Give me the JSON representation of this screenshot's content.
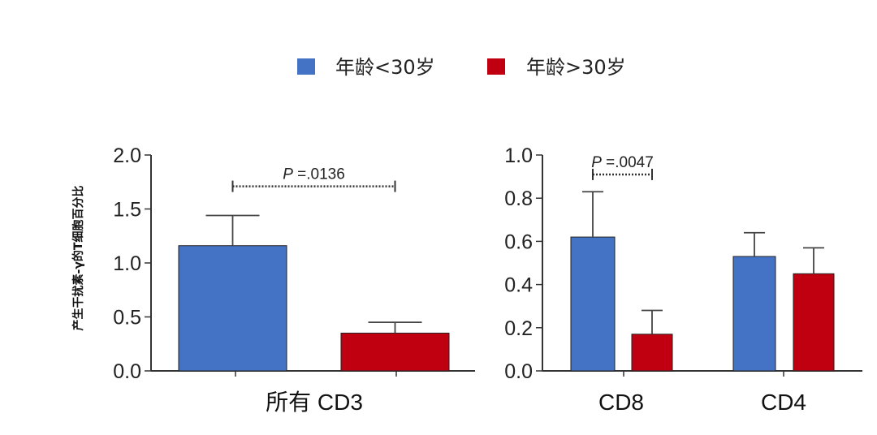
{
  "legend": [
    {
      "label": "年龄<30岁",
      "color": "#4472C4"
    },
    {
      "label": "年龄>30岁",
      "color": "#C00010"
    }
  ],
  "ylabel": "产生干扰素-γ的T细胞百分比",
  "chart_data": [
    {
      "type": "bar",
      "categories": [
        "所有 CD3"
      ],
      "series": [
        {
          "name": "年龄<30岁",
          "values": [
            1.16
          ],
          "errors": [
            0.28
          ]
        },
        {
          "name": "年龄>30岁",
          "values": [
            0.35
          ],
          "errors": [
            0.1
          ]
        }
      ],
      "ylim": [
        0,
        2.0
      ],
      "yticks": [
        "0.0",
        "0.5",
        "1.0",
        "1.5",
        "2.0"
      ],
      "ytick_values": [
        0,
        0.5,
        1.0,
        1.5,
        2.0
      ],
      "annotations": [
        {
          "text_prefix": "P",
          "text": " =.0136",
          "category": 0,
          "y": 1.71
        }
      ]
    },
    {
      "type": "bar",
      "categories": [
        "CD8",
        "CD4"
      ],
      "series": [
        {
          "name": "年龄<30岁",
          "values": [
            0.62,
            0.53
          ],
          "errors": [
            0.21,
            0.11
          ]
        },
        {
          "name": "年龄>30岁",
          "values": [
            0.17,
            0.45
          ],
          "errors": [
            0.11,
            0.12
          ]
        }
      ],
      "ylim": [
        0,
        1.0
      ],
      "yticks": [
        "0.0",
        "0.2",
        "0.4",
        "0.6",
        "0.8",
        "1.0"
      ],
      "ytick_values": [
        0,
        0.2,
        0.4,
        0.6,
        0.8,
        1.0
      ],
      "annotations": [
        {
          "text_prefix": "P",
          "text": " =.0047",
          "category": 0,
          "y": 0.91
        }
      ]
    }
  ]
}
